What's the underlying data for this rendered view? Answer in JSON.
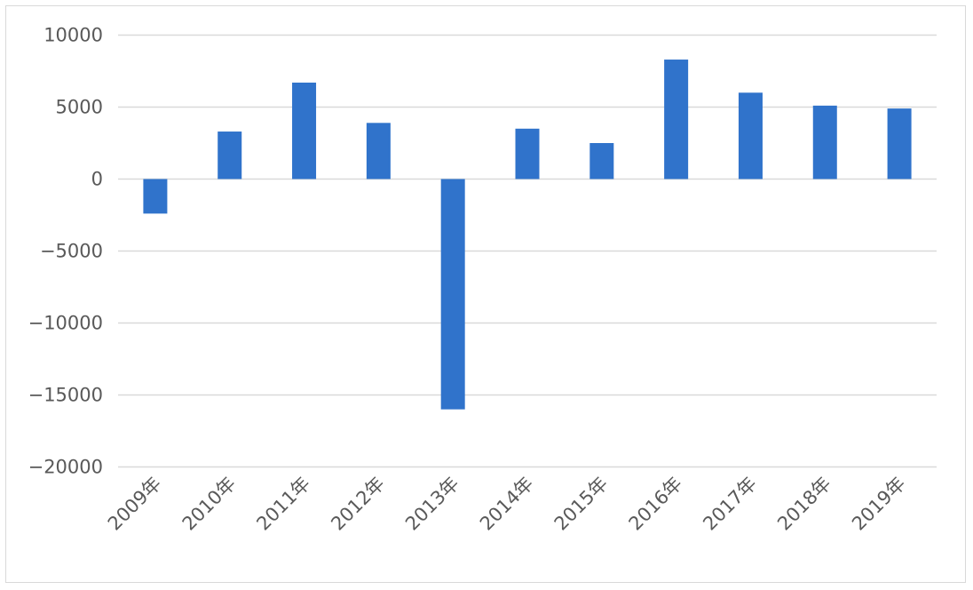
{
  "chart_data": {
    "type": "bar",
    "title": "",
    "xlabel": "",
    "ylabel": "",
    "categories": [
      "2009年",
      "2010年",
      "2011年",
      "2012年",
      "2013年",
      "2014年",
      "2015年",
      "2016年",
      "2017年",
      "2018年",
      "2019年"
    ],
    "values": [
      -2400,
      3300,
      6700,
      3900,
      -16000,
      3500,
      2500,
      8300,
      6000,
      5100,
      4900
    ],
    "ylim": [
      -20000,
      10000
    ],
    "yticks": [
      10000,
      5000,
      0,
      -5000,
      -10000,
      -15000,
      -20000
    ],
    "ytick_labels": [
      "10000",
      "5000",
      "0",
      "−5000",
      "−10000",
      "−15000",
      "−20000"
    ],
    "grid": true,
    "legend": "none",
    "bar_color": "#3073cb",
    "grid_color": "#d9d9d9"
  }
}
